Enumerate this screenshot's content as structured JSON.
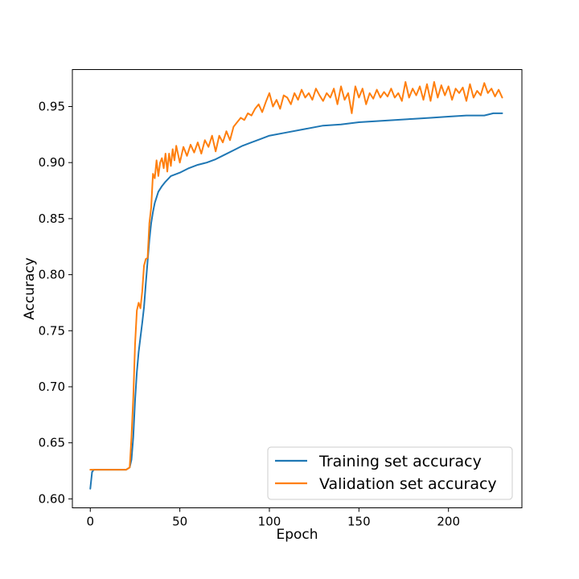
{
  "chart_data": {
    "type": "line",
    "title": "",
    "xlabel": "Epoch",
    "ylabel": "Accuracy",
    "xlim": [
      -10,
      241
    ],
    "ylim": [
      0.592,
      0.983
    ],
    "xticks": [
      0,
      50,
      100,
      150,
      200
    ],
    "yticks": [
      0.6,
      0.65,
      0.7,
      0.75,
      0.8,
      0.85,
      0.9,
      0.95
    ],
    "xtick_labels": [
      "0",
      "50",
      "100",
      "150",
      "200"
    ],
    "ytick_labels": [
      "0.60",
      "0.65",
      "0.70",
      "0.75",
      "0.80",
      "0.85",
      "0.90",
      "0.95"
    ],
    "grid": false,
    "legend_position": "lower-right",
    "series": [
      {
        "name": "Training set accuracy",
        "color": "#1f77b4",
        "x": [
          0,
          1,
          2,
          5,
          10,
          15,
          20,
          22,
          23,
          24,
          25,
          26,
          27,
          28,
          29,
          30,
          31,
          32,
          33,
          34,
          35,
          36,
          37,
          38,
          40,
          42,
          45,
          50,
          55,
          60,
          65,
          70,
          75,
          80,
          85,
          90,
          95,
          100,
          110,
          120,
          130,
          140,
          150,
          160,
          170,
          180,
          190,
          200,
          210,
          220,
          225,
          230
        ],
        "y": [
          0.609,
          0.624,
          0.626,
          0.626,
          0.626,
          0.626,
          0.626,
          0.628,
          0.635,
          0.655,
          0.688,
          0.713,
          0.731,
          0.744,
          0.757,
          0.771,
          0.792,
          0.812,
          0.831,
          0.846,
          0.856,
          0.864,
          0.869,
          0.874,
          0.879,
          0.883,
          0.888,
          0.891,
          0.895,
          0.898,
          0.9,
          0.903,
          0.907,
          0.911,
          0.915,
          0.918,
          0.921,
          0.924,
          0.927,
          0.93,
          0.933,
          0.934,
          0.936,
          0.937,
          0.938,
          0.939,
          0.94,
          0.941,
          0.942,
          0.942,
          0.944,
          0.944
        ]
      },
      {
        "name": "Validation set accuracy",
        "color": "#ff7f0e",
        "x": [
          0,
          1,
          2,
          5,
          10,
          15,
          20,
          22,
          23,
          24,
          25,
          26,
          27,
          28,
          29,
          30,
          31,
          32,
          33,
          34,
          35,
          36,
          37,
          38,
          39,
          40,
          41,
          42,
          43,
          44,
          45,
          46,
          47,
          48,
          50,
          52,
          54,
          56,
          58,
          60,
          62,
          64,
          66,
          68,
          70,
          72,
          74,
          76,
          78,
          80,
          82,
          84,
          86,
          88,
          90,
          92,
          94,
          96,
          98,
          100,
          102,
          104,
          106,
          108,
          110,
          112,
          114,
          116,
          118,
          120,
          122,
          124,
          126,
          128,
          130,
          132,
          134,
          136,
          138,
          140,
          142,
          144,
          146,
          148,
          150,
          152,
          154,
          156,
          158,
          160,
          162,
          164,
          166,
          168,
          170,
          172,
          174,
          176,
          178,
          180,
          182,
          184,
          186,
          188,
          190,
          192,
          194,
          196,
          198,
          200,
          202,
          204,
          206,
          208,
          210,
          212,
          214,
          216,
          218,
          220,
          222,
          224,
          226,
          228,
          230
        ],
        "y": [
          0.626,
          0.626,
          0.626,
          0.626,
          0.626,
          0.626,
          0.626,
          0.628,
          0.655,
          0.69,
          0.738,
          0.768,
          0.775,
          0.77,
          0.785,
          0.808,
          0.814,
          0.815,
          0.846,
          0.86,
          0.89,
          0.886,
          0.902,
          0.888,
          0.9,
          0.904,
          0.895,
          0.908,
          0.892,
          0.908,
          0.897,
          0.912,
          0.902,
          0.915,
          0.9,
          0.914,
          0.906,
          0.916,
          0.909,
          0.918,
          0.908,
          0.92,
          0.914,
          0.924,
          0.91,
          0.924,
          0.918,
          0.928,
          0.92,
          0.932,
          0.936,
          0.94,
          0.938,
          0.944,
          0.942,
          0.948,
          0.952,
          0.945,
          0.954,
          0.962,
          0.95,
          0.956,
          0.948,
          0.96,
          0.958,
          0.952,
          0.962,
          0.956,
          0.965,
          0.958,
          0.962,
          0.956,
          0.966,
          0.96,
          0.955,
          0.962,
          0.958,
          0.966,
          0.952,
          0.968,
          0.956,
          0.962,
          0.944,
          0.968,
          0.958,
          0.966,
          0.952,
          0.962,
          0.957,
          0.965,
          0.958,
          0.963,
          0.959,
          0.966,
          0.958,
          0.962,
          0.955,
          0.972,
          0.958,
          0.966,
          0.96,
          0.968,
          0.956,
          0.97,
          0.955,
          0.972,
          0.958,
          0.969,
          0.96,
          0.968,
          0.956,
          0.966,
          0.962,
          0.967,
          0.955,
          0.97,
          0.958,
          0.964,
          0.96,
          0.971,
          0.962,
          0.966,
          0.959,
          0.965,
          0.958
        ]
      }
    ]
  }
}
